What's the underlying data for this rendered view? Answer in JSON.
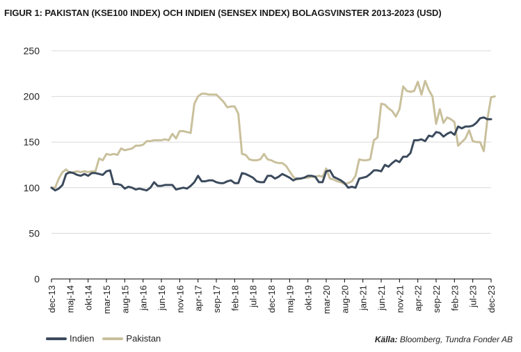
{
  "title": "FIGUR 1: PAKISTAN (KSE100 INDEX) OCH INDIEN (SENSEX INDEX) BOLAGSVINSTER 2013-2023 (USD)",
  "source_label": "Källa:",
  "source_text": "Bloomberg, Tundra Fonder AB",
  "colors": {
    "indien": "#3b4a5c",
    "pakistan": "#c9c09c",
    "grid": "#d9d9d9",
    "axis": "#000000"
  },
  "chart_data": {
    "type": "line",
    "title": "FIGUR 1: PAKISTAN (KSE100 INDEX) OCH INDIEN (SENSEX INDEX) BOLAGSVINSTER 2013-2023 (USD)",
    "xlabel": "",
    "ylabel": "",
    "ylim": [
      0,
      250
    ],
    "yticks": [
      0,
      50,
      100,
      150,
      200,
      250
    ],
    "grid": true,
    "legend_position": "bottom-left",
    "x_range": [
      0,
      120
    ],
    "x_tick_positions": [
      0,
      5,
      10,
      15,
      20,
      25,
      30,
      35,
      40,
      45,
      50,
      55,
      60,
      65,
      70,
      75,
      80,
      85,
      90,
      95,
      100,
      105,
      110,
      115,
      120
    ],
    "x_tick_labels": [
      "dec-13",
      "maj-14",
      "okt-14",
      "mar-15",
      "aug-15",
      "jan-16",
      "jun-16",
      "nov-16",
      "apr-17",
      "sep-17",
      "feb-18",
      "jul-18",
      "dec-18",
      "maj-19",
      "okt-19",
      "mar-20",
      "aug-20",
      "jan-21",
      "jun-21",
      "nov-21",
      "apr-22",
      "sep-22",
      "feb-23",
      "jul-23",
      "dec-23"
    ],
    "series": [
      {
        "name": "Indien",
        "points": [
          [
            0,
            100
          ],
          [
            1,
            97
          ],
          [
            2,
            99
          ],
          [
            3,
            103
          ],
          [
            4,
            115
          ],
          [
            5,
            117
          ],
          [
            6,
            116
          ],
          [
            7,
            114
          ],
          [
            8,
            113
          ],
          [
            9,
            115
          ],
          [
            10,
            113
          ],
          [
            11,
            116
          ],
          [
            12,
            116
          ],
          [
            13,
            115
          ],
          [
            14,
            114
          ],
          [
            15,
            118
          ],
          [
            16,
            119
          ],
          [
            17,
            104
          ],
          [
            18,
            104
          ],
          [
            19,
            103
          ],
          [
            20,
            99
          ],
          [
            21,
            101
          ],
          [
            22,
            100
          ],
          [
            23,
            98
          ],
          [
            24,
            99
          ],
          [
            25,
            98
          ],
          [
            26,
            97
          ],
          [
            27,
            100
          ],
          [
            28,
            106
          ],
          [
            29,
            102
          ],
          [
            30,
            102
          ],
          [
            31,
            103
          ],
          [
            32,
            103
          ],
          [
            33,
            103
          ],
          [
            34,
            98
          ],
          [
            35,
            99
          ],
          [
            36,
            100
          ],
          [
            37,
            99
          ],
          [
            38,
            102
          ],
          [
            39,
            106
          ],
          [
            40,
            113
          ],
          [
            41,
            107
          ],
          [
            42,
            107
          ],
          [
            43,
            108
          ],
          [
            44,
            108
          ],
          [
            45,
            106
          ],
          [
            46,
            105
          ],
          [
            47,
            105
          ],
          [
            48,
            107
          ],
          [
            49,
            108
          ],
          [
            50,
            105
          ],
          [
            51,
            105
          ],
          [
            52,
            116
          ],
          [
            53,
            115
          ],
          [
            54,
            113
          ],
          [
            55,
            111
          ],
          [
            56,
            107
          ],
          [
            57,
            106
          ],
          [
            58,
            106
          ],
          [
            59,
            113
          ],
          [
            60,
            113
          ],
          [
            61,
            110
          ],
          [
            62,
            112
          ],
          [
            63,
            115
          ],
          [
            64,
            113
          ],
          [
            65,
            111
          ],
          [
            66,
            108
          ],
          [
            67,
            110
          ],
          [
            68,
            110
          ],
          [
            69,
            111
          ],
          [
            70,
            113
          ],
          [
            71,
            113
          ],
          [
            72,
            112
          ],
          [
            73,
            106
          ],
          [
            74,
            106
          ],
          [
            75,
            118
          ],
          [
            76,
            119
          ],
          [
            77,
            112
          ],
          [
            78,
            110
          ],
          [
            79,
            108
          ],
          [
            80,
            105
          ],
          [
            81,
            100
          ],
          [
            82,
            101
          ],
          [
            83,
            100
          ],
          [
            84,
            110
          ],
          [
            85,
            111
          ],
          [
            86,
            112
          ],
          [
            87,
            115
          ],
          [
            88,
            119
          ],
          [
            89,
            119
          ],
          [
            90,
            118
          ],
          [
            91,
            125
          ],
          [
            92,
            123
          ],
          [
            93,
            127
          ],
          [
            94,
            130
          ],
          [
            95,
            128
          ],
          [
            96,
            134
          ],
          [
            97,
            134
          ],
          [
            98,
            138
          ],
          [
            99,
            152
          ],
          [
            100,
            152
          ],
          [
            101,
            153
          ],
          [
            102,
            151
          ],
          [
            103,
            157
          ],
          [
            104,
            156
          ],
          [
            105,
            161
          ],
          [
            106,
            160
          ],
          [
            107,
            156
          ],
          [
            108,
            159
          ],
          [
            109,
            161
          ],
          [
            110,
            158
          ],
          [
            111,
            167
          ],
          [
            112,
            165
          ],
          [
            113,
            167
          ],
          [
            114,
            167
          ],
          [
            115,
            168
          ],
          [
            116,
            171
          ],
          [
            117,
            176
          ],
          [
            118,
            177
          ],
          [
            119,
            175
          ],
          [
            120,
            175
          ]
        ]
      },
      {
        "name": "Pakistan",
        "points": [
          [
            0,
            100
          ],
          [
            1,
            100
          ],
          [
            2,
            110
          ],
          [
            3,
            117
          ],
          [
            4,
            120
          ],
          [
            5,
            116
          ],
          [
            6,
            117
          ],
          [
            7,
            118
          ],
          [
            8,
            117
          ],
          [
            9,
            118
          ],
          [
            10,
            117
          ],
          [
            11,
            118
          ],
          [
            12,
            118
          ],
          [
            13,
            132
          ],
          [
            14,
            130
          ],
          [
            15,
            137
          ],
          [
            16,
            136
          ],
          [
            17,
            137
          ],
          [
            18,
            136
          ],
          [
            19,
            143
          ],
          [
            20,
            141
          ],
          [
            21,
            142
          ],
          [
            22,
            143
          ],
          [
            23,
            146
          ],
          [
            24,
            146
          ],
          [
            25,
            147
          ],
          [
            26,
            151
          ],
          [
            27,
            151
          ],
          [
            28,
            152
          ],
          [
            29,
            152
          ],
          [
            30,
            152
          ],
          [
            31,
            153
          ],
          [
            32,
            152
          ],
          [
            33,
            159
          ],
          [
            34,
            154
          ],
          [
            35,
            162
          ],
          [
            36,
            162
          ],
          [
            37,
            161
          ],
          [
            38,
            160
          ],
          [
            39,
            192
          ],
          [
            40,
            200
          ],
          [
            41,
            203
          ],
          [
            42,
            203
          ],
          [
            43,
            202
          ],
          [
            44,
            202
          ],
          [
            45,
            202
          ],
          [
            46,
            198
          ],
          [
            47,
            194
          ],
          [
            48,
            188
          ],
          [
            49,
            189
          ],
          [
            50,
            189
          ],
          [
            51,
            181
          ],
          [
            52,
            137
          ],
          [
            53,
            136
          ],
          [
            54,
            131
          ],
          [
            55,
            130
          ],
          [
            56,
            130
          ],
          [
            57,
            131
          ],
          [
            58,
            137
          ],
          [
            59,
            131
          ],
          [
            60,
            130
          ],
          [
            61,
            128
          ],
          [
            62,
            127
          ],
          [
            63,
            127
          ],
          [
            64,
            124
          ],
          [
            65,
            118
          ],
          [
            66,
            112
          ],
          [
            67,
            109
          ],
          [
            68,
            110
          ],
          [
            69,
            111
          ],
          [
            70,
            111
          ],
          [
            71,
            112
          ],
          [
            72,
            112
          ],
          [
            73,
            113
          ],
          [
            74,
            112
          ],
          [
            75,
            121
          ],
          [
            76,
            110
          ],
          [
            77,
            109
          ],
          [
            78,
            107
          ],
          [
            79,
            106
          ],
          [
            80,
            104
          ],
          [
            81,
            105
          ],
          [
            82,
            107
          ],
          [
            83,
            113
          ],
          [
            84,
            131
          ],
          [
            85,
            130
          ],
          [
            86,
            130
          ],
          [
            87,
            131
          ],
          [
            88,
            152
          ],
          [
            89,
            155
          ],
          [
            90,
            192
          ],
          [
            91,
            191
          ],
          [
            92,
            187
          ],
          [
            93,
            184
          ],
          [
            94,
            178
          ],
          [
            95,
            186
          ],
          [
            96,
            211
          ],
          [
            97,
            206
          ],
          [
            98,
            205
          ],
          [
            99,
            206
          ],
          [
            100,
            216
          ],
          [
            101,
            202
          ],
          [
            102,
            217
          ],
          [
            103,
            207
          ],
          [
            104,
            200
          ],
          [
            105,
            170
          ],
          [
            106,
            186
          ],
          [
            107,
            171
          ],
          [
            108,
            177
          ],
          [
            109,
            175
          ],
          [
            110,
            172
          ],
          [
            111,
            146
          ],
          [
            112,
            150
          ],
          [
            113,
            154
          ],
          [
            114,
            163
          ],
          [
            115,
            151
          ],
          [
            116,
            150
          ],
          [
            117,
            150
          ],
          [
            118,
            140
          ],
          [
            119,
            175
          ],
          [
            120,
            199
          ],
          [
            121,
            200
          ]
        ]
      }
    ]
  }
}
